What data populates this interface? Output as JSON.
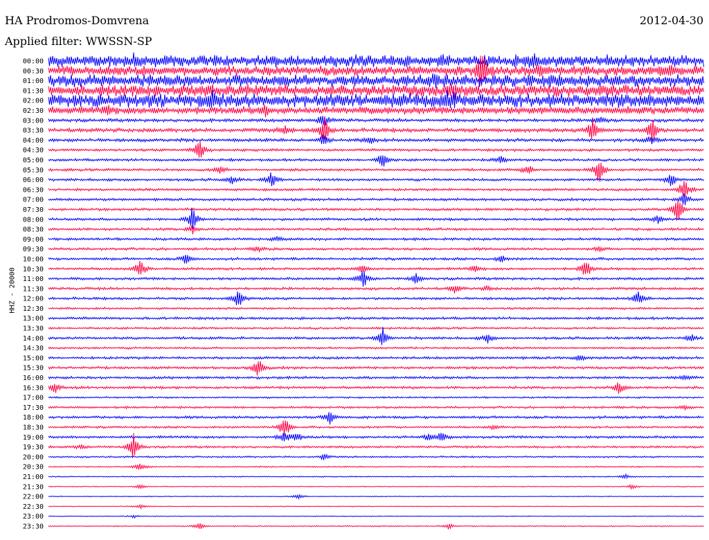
{
  "header": {
    "station": "HA Prodromos-Domvrena",
    "date": "2012-04-30",
    "filter": "Applied filter: WWSSN-SP",
    "channel": "HHZ - 20000"
  },
  "colors": {
    "even_rows": "#0000ff",
    "odd_rows": "#ff0040"
  },
  "chart_data": {
    "type": "line",
    "title": "HA Prodromos-Domvrena",
    "subtitle": "Applied filter: WWSSN-SP",
    "ylabel": "HHZ - 20000",
    "xlabel": "",
    "grid": false,
    "legend": "none",
    "rows": [
      {
        "label": "00:00",
        "noise": 0.55,
        "events": [
          [
            0.13,
            0.55
          ],
          [
            0.6,
            0.5
          ],
          [
            0.74,
            0.5
          ]
        ]
      },
      {
        "label": "00:30",
        "noise": 0.45,
        "events": [
          [
            0.66,
            2.3
          ],
          [
            0.75,
            0.5
          ],
          [
            0.95,
            0.5
          ]
        ]
      },
      {
        "label": "01:00",
        "noise": 0.55,
        "events": [
          [
            0.59,
            0.6
          ],
          [
            0.77,
            0.5
          ]
        ]
      },
      {
        "label": "01:30",
        "noise": 0.55,
        "events": [
          [
            0.24,
            0.6
          ],
          [
            0.62,
            0.5
          ]
        ]
      },
      {
        "label": "02:00",
        "noise": 0.65,
        "events": [
          [
            0.25,
            0.8
          ],
          [
            0.61,
            0.6
          ]
        ]
      },
      {
        "label": "02:30",
        "noise": 0.35,
        "events": [
          [
            0.09,
            0.4
          ],
          [
            0.33,
            0.5
          ]
        ]
      },
      {
        "label": "03:00",
        "noise": 0.15,
        "events": [
          [
            0.42,
            1.0
          ],
          [
            0.84,
            0.5
          ]
        ]
      },
      {
        "label": "03:30",
        "noise": 0.18,
        "events": [
          [
            0.36,
            0.6
          ],
          [
            0.42,
            1.9
          ],
          [
            0.83,
            1.7
          ],
          [
            0.92,
            1.9
          ]
        ]
      },
      {
        "label": "04:00",
        "noise": 0.15,
        "events": [
          [
            0.42,
            0.8
          ],
          [
            0.49,
            0.5
          ],
          [
            0.92,
            0.6
          ]
        ]
      },
      {
        "label": "04:30",
        "noise": 0.12,
        "events": [
          [
            0.23,
            1.7
          ]
        ]
      },
      {
        "label": "05:00",
        "noise": 0.12,
        "events": [
          [
            0.51,
            1.0
          ],
          [
            0.69,
            0.5
          ]
        ]
      },
      {
        "label": "05:30",
        "noise": 0.12,
        "events": [
          [
            0.26,
            0.6
          ],
          [
            0.73,
            0.7
          ],
          [
            0.84,
            1.8
          ]
        ]
      },
      {
        "label": "06:00",
        "noise": 0.12,
        "events": [
          [
            0.28,
            0.6
          ],
          [
            0.34,
            1.0
          ],
          [
            0.95,
            0.9
          ]
        ]
      },
      {
        "label": "06:30",
        "noise": 0.12,
        "events": [
          [
            0.97,
            1.7
          ]
        ]
      },
      {
        "label": "07:00",
        "noise": 0.12,
        "events": [
          [
            0.97,
            0.8
          ]
        ]
      },
      {
        "label": "07:30",
        "noise": 0.12,
        "events": [
          [
            0.96,
            1.8
          ]
        ]
      },
      {
        "label": "08:00",
        "noise": 0.12,
        "events": [
          [
            0.22,
            1.8
          ],
          [
            0.93,
            0.5
          ]
        ]
      },
      {
        "label": "08:30",
        "noise": 0.12,
        "events": [
          [
            0.22,
            0.5
          ]
        ]
      },
      {
        "label": "09:00",
        "noise": 0.12,
        "events": [
          [
            0.35,
            0.3
          ]
        ]
      },
      {
        "label": "09:30",
        "noise": 0.12,
        "events": [
          [
            0.32,
            0.3
          ],
          [
            0.84,
            0.3
          ]
        ]
      },
      {
        "label": "10:00",
        "noise": 0.12,
        "events": [
          [
            0.21,
            0.7
          ],
          [
            0.69,
            0.5
          ]
        ]
      },
      {
        "label": "10:30",
        "noise": 0.12,
        "events": [
          [
            0.14,
            1.4
          ],
          [
            0.48,
            0.5
          ],
          [
            0.65,
            0.4
          ],
          [
            0.82,
            1.4
          ]
        ]
      },
      {
        "label": "11:00",
        "noise": 0.12,
        "events": [
          [
            0.48,
            1.2
          ],
          [
            0.56,
            0.6
          ]
        ]
      },
      {
        "label": "11:30",
        "noise": 0.12,
        "events": [
          [
            0.62,
            0.6
          ],
          [
            0.67,
            0.3
          ]
        ]
      },
      {
        "label": "12:00",
        "noise": 0.12,
        "events": [
          [
            0.29,
            1.3
          ],
          [
            0.9,
            0.9
          ]
        ]
      },
      {
        "label": "12:30",
        "noise": 0.1,
        "events": []
      },
      {
        "label": "13:00",
        "noise": 0.12,
        "events": []
      },
      {
        "label": "13:30",
        "noise": 0.1,
        "events": []
      },
      {
        "label": "14:00",
        "noise": 0.12,
        "events": [
          [
            0.51,
            1.5
          ],
          [
            0.67,
            0.6
          ],
          [
            0.98,
            0.5
          ]
        ]
      },
      {
        "label": "14:30",
        "noise": 0.1,
        "events": []
      },
      {
        "label": "15:00",
        "noise": 0.12,
        "events": [
          [
            0.81,
            0.4
          ]
        ]
      },
      {
        "label": "15:30",
        "noise": 0.12,
        "events": [
          [
            0.32,
            1.4
          ]
        ]
      },
      {
        "label": "16:00",
        "noise": 0.12,
        "events": [
          [
            0.97,
            0.3
          ]
        ]
      },
      {
        "label": "16:30",
        "noise": 0.12,
        "events": [
          [
            0.01,
            0.7
          ],
          [
            0.87,
            0.9
          ]
        ]
      },
      {
        "label": "17:00",
        "noise": 0.08,
        "events": []
      },
      {
        "label": "17:30",
        "noise": 0.1,
        "events": [
          [
            0.97,
            0.3
          ]
        ]
      },
      {
        "label": "18:00",
        "noise": 0.12,
        "events": [
          [
            0.43,
            1.1
          ]
        ]
      },
      {
        "label": "18:30",
        "noise": 0.1,
        "events": [
          [
            0.36,
            1.6
          ],
          [
            0.68,
            0.3
          ]
        ]
      },
      {
        "label": "19:00",
        "noise": 0.12,
        "events": [
          [
            0.36,
            0.9
          ],
          [
            0.38,
            0.6
          ],
          [
            0.58,
            0.6
          ],
          [
            0.6,
            0.6
          ]
        ]
      },
      {
        "label": "19:30",
        "noise": 0.1,
        "events": [
          [
            0.13,
            1.7
          ],
          [
            0.05,
            0.3
          ]
        ]
      },
      {
        "label": "20:00",
        "noise": 0.08,
        "events": [
          [
            0.42,
            0.4
          ]
        ]
      },
      {
        "label": "20:30",
        "noise": 0.06,
        "events": [
          [
            0.14,
            0.6
          ]
        ]
      },
      {
        "label": "21:00",
        "noise": 0.05,
        "events": [
          [
            0.88,
            0.3
          ]
        ]
      },
      {
        "label": "21:30",
        "noise": 0.04,
        "events": [
          [
            0.14,
            0.3
          ],
          [
            0.89,
            0.3
          ]
        ]
      },
      {
        "label": "22:00",
        "noise": 0.04,
        "events": [
          [
            0.38,
            0.4
          ]
        ]
      },
      {
        "label": "22:30",
        "noise": 0.04,
        "events": [
          [
            0.14,
            0.3
          ]
        ]
      },
      {
        "label": "23:00",
        "noise": 0.04,
        "events": [
          [
            0.13,
            0.2
          ]
        ]
      },
      {
        "label": "23:30",
        "noise": 0.05,
        "events": [
          [
            0.23,
            0.5
          ],
          [
            0.61,
            0.4
          ]
        ]
      }
    ]
  }
}
